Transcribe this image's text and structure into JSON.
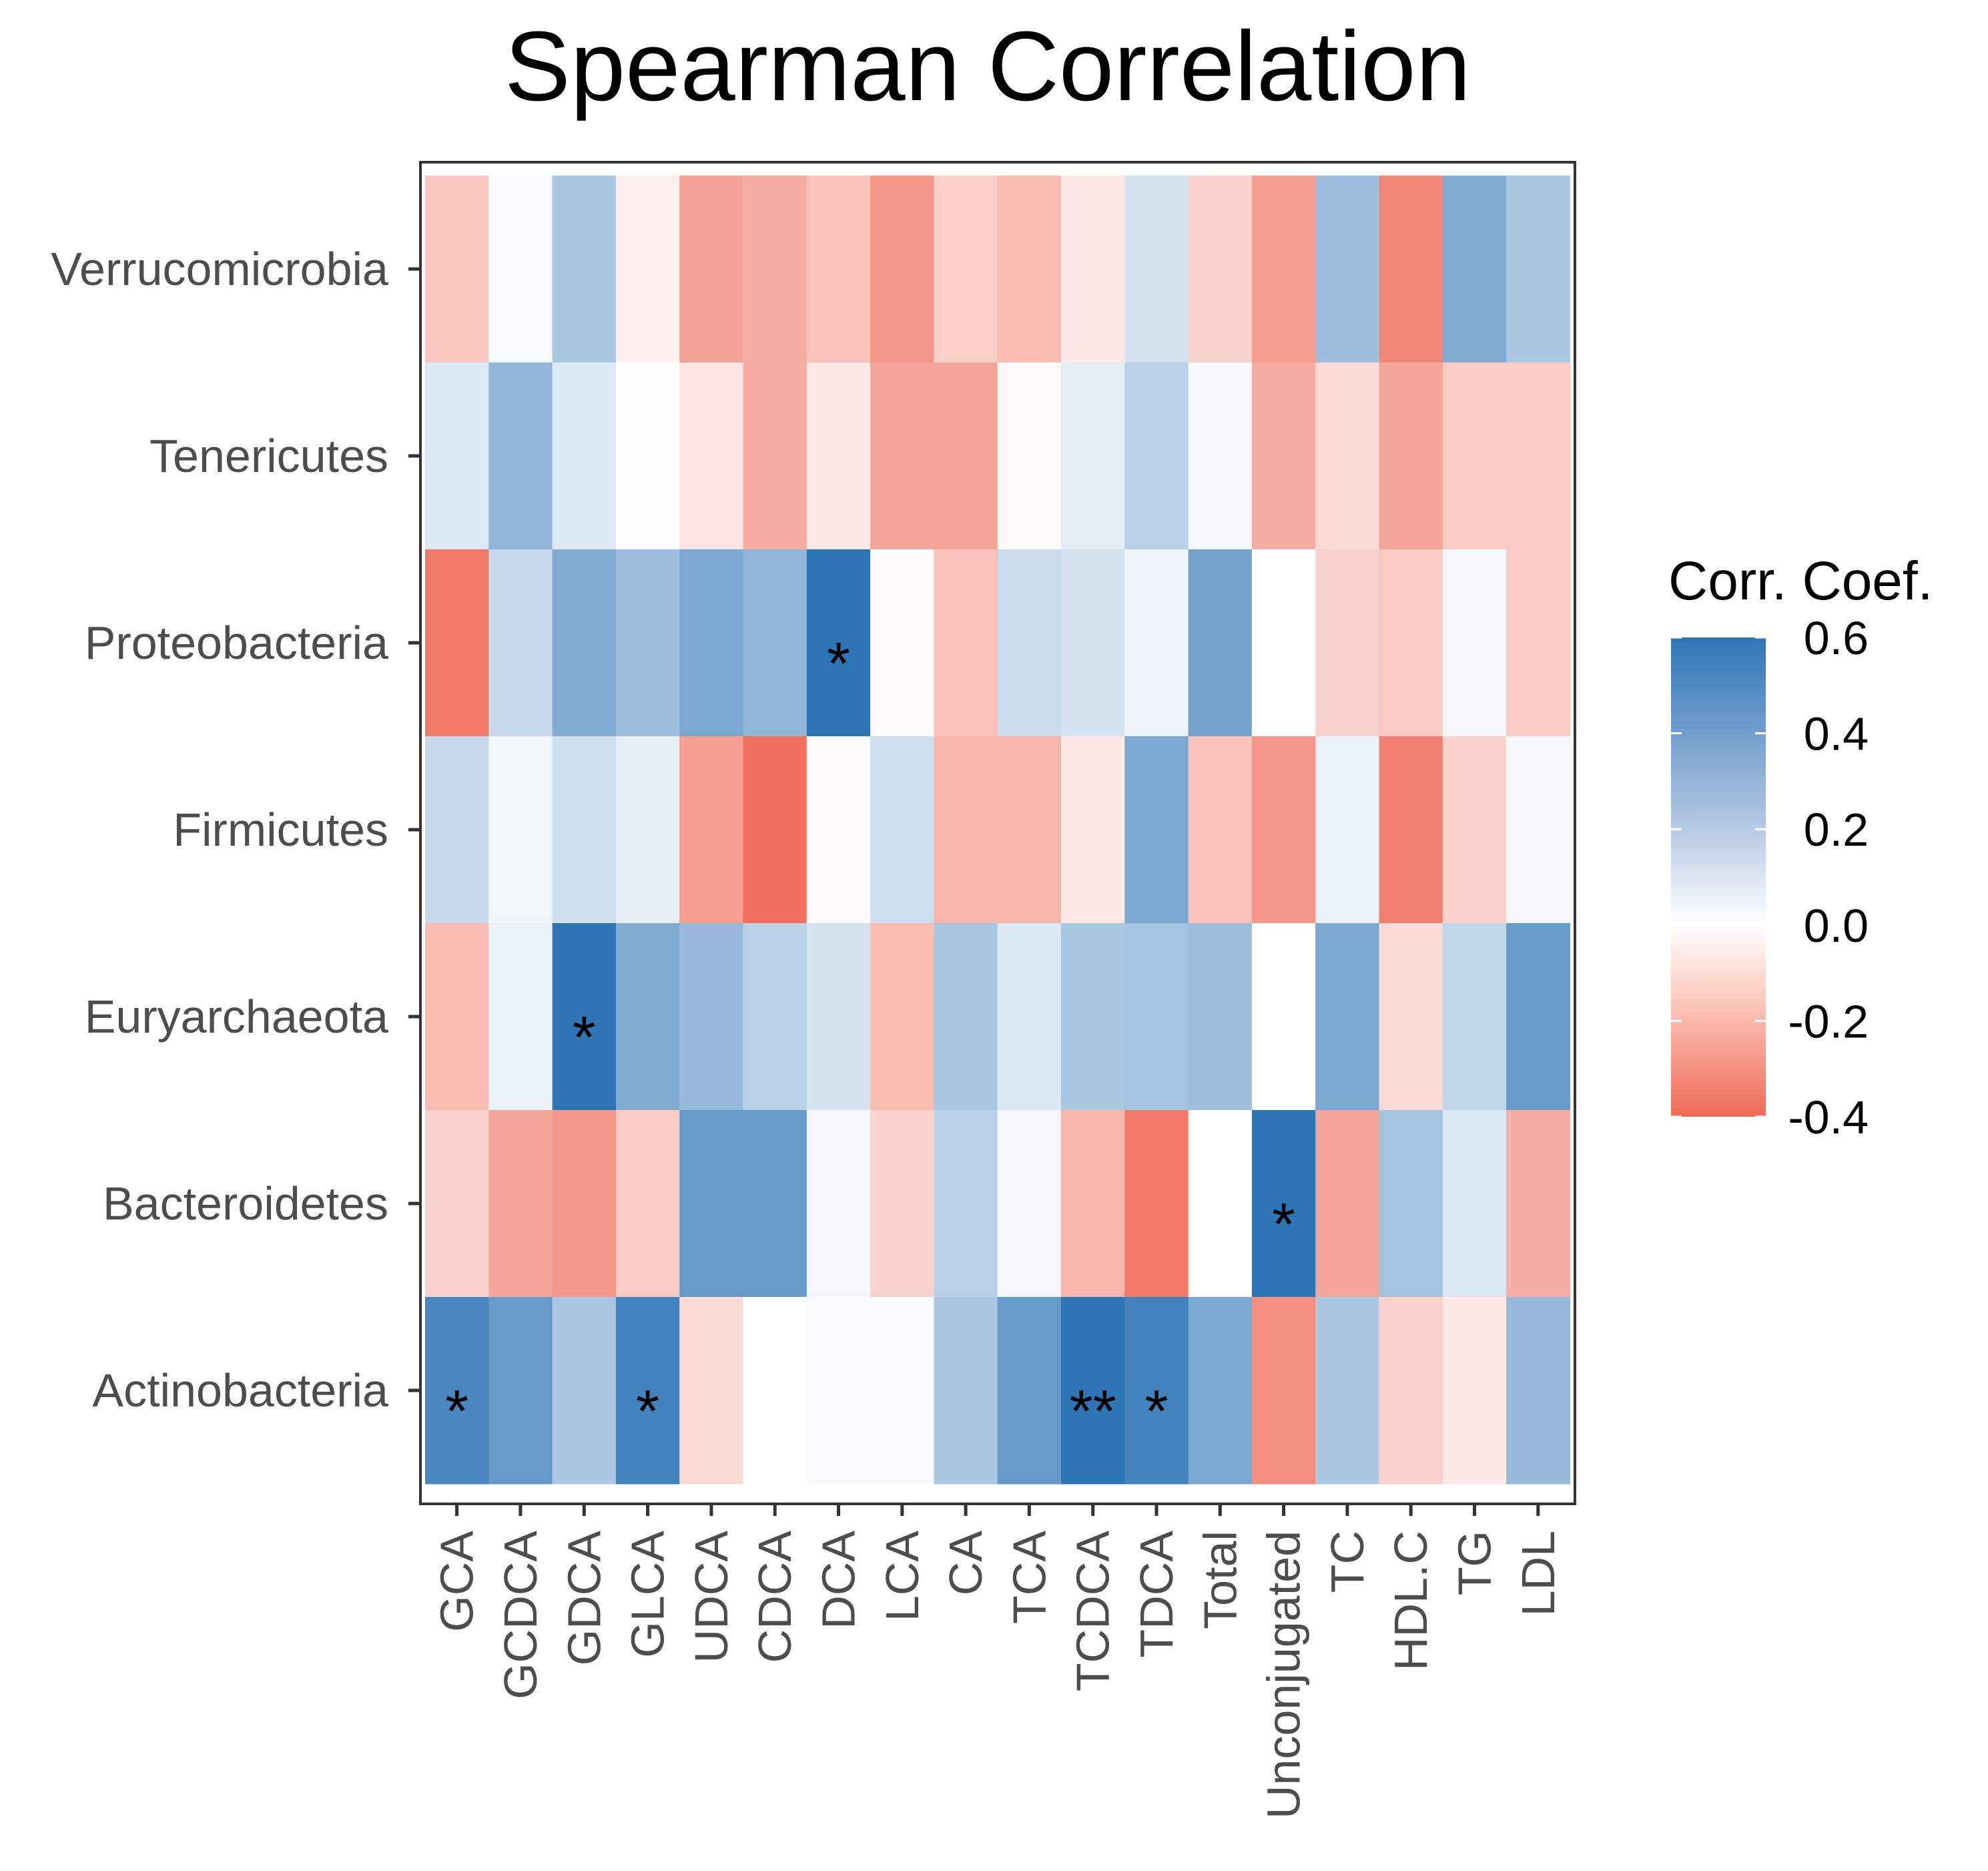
{
  "chart_data": {
    "type": "heatmap",
    "title": "Spearman Correlation",
    "x_categories": [
      "GCA",
      "GCDCA",
      "GDCA",
      "GLCA",
      "UDCA",
      "CDCA",
      "DCA",
      "LCA",
      "CA",
      "TCA",
      "TCDCA",
      "TDCA",
      "Total",
      "Unconjugated",
      "TC",
      "HDL.C",
      "TG",
      "LDL"
    ],
    "y_categories": [
      "Verrucomicrobia",
      "Tenericutes",
      "Proteobacteria",
      "Firmicutes",
      "Euryarchaeota",
      "Bacteroidetes",
      "Actinobacteria"
    ],
    "values": [
      [
        -0.15,
        0.02,
        0.24,
        -0.04,
        -0.25,
        -0.22,
        -0.16,
        -0.28,
        -0.13,
        -0.18,
        -0.06,
        0.12,
        -0.12,
        -0.26,
        0.28,
        -0.32,
        0.36,
        0.24
      ],
      [
        0.1,
        0.32,
        0.1,
        0.01,
        -0.07,
        -0.22,
        -0.06,
        -0.24,
        -0.24,
        -0.02,
        0.08,
        0.2,
        0.03,
        -0.22,
        -0.1,
        -0.24,
        -0.14,
        -0.14
      ],
      [
        -0.36,
        0.16,
        0.36,
        0.28,
        0.38,
        0.32,
        0.62,
        -0.01,
        -0.16,
        0.15,
        0.12,
        0.05,
        0.4,
        0.0,
        -0.12,
        -0.14,
        0.03,
        -0.14
      ],
      [
        0.16,
        0.04,
        0.14,
        0.07,
        -0.26,
        -0.38,
        -0.01,
        0.14,
        -0.2,
        -0.2,
        -0.06,
        0.38,
        -0.16,
        -0.28,
        0.06,
        -0.34,
        -0.12,
        0.03
      ],
      [
        -0.18,
        0.06,
        0.6,
        0.36,
        0.3,
        0.2,
        0.12,
        -0.18,
        0.24,
        0.1,
        0.24,
        0.26,
        0.28,
        0.0,
        0.38,
        -0.1,
        0.18,
        0.44
      ],
      [
        -0.12,
        -0.24,
        -0.28,
        -0.14,
        0.44,
        0.44,
        0.03,
        -0.12,
        0.2,
        0.03,
        -0.2,
        -0.36,
        0.0,
        0.62,
        -0.24,
        0.26,
        0.1,
        -0.22
      ],
      [
        0.52,
        0.44,
        0.24,
        0.54,
        -0.1,
        0.0,
        0.02,
        0.02,
        0.24,
        0.44,
        0.68,
        0.54,
        0.38,
        -0.3,
        0.24,
        -0.12,
        -0.06,
        0.3
      ]
    ],
    "significance": [
      {
        "row": "Proteobacteria",
        "col": "DCA",
        "mark": "*"
      },
      {
        "row": "Euryarchaeota",
        "col": "GDCA",
        "mark": "*"
      },
      {
        "row": "Bacteroidetes",
        "col": "Unconjugated",
        "mark": "*"
      },
      {
        "row": "Actinobacteria",
        "col": "GCA",
        "mark": "*"
      },
      {
        "row": "Actinobacteria",
        "col": "GLCA",
        "mark": "*"
      },
      {
        "row": "Actinobacteria",
        "col": "TCDCA",
        "mark": "**"
      },
      {
        "row": "Actinobacteria",
        "col": "TDCA",
        "mark": "*"
      }
    ],
    "legend": {
      "title": "Corr. Coef.",
      "ticks": [
        0.6,
        0.4,
        0.2,
        0.0,
        -0.2,
        -0.4
      ],
      "tick_labels": [
        "0.6",
        "0.4",
        "0.2",
        "0.0",
        "-0.2",
        "-0.4"
      ],
      "range": [
        -0.4,
        0.6
      ],
      "placement": "right"
    },
    "colors": {
      "high": "#2e75b6",
      "mid": "#ffffff",
      "low": "#ef6a57",
      "panel_border": "#333333",
      "axis_text": "#4d4d4d"
    }
  }
}
